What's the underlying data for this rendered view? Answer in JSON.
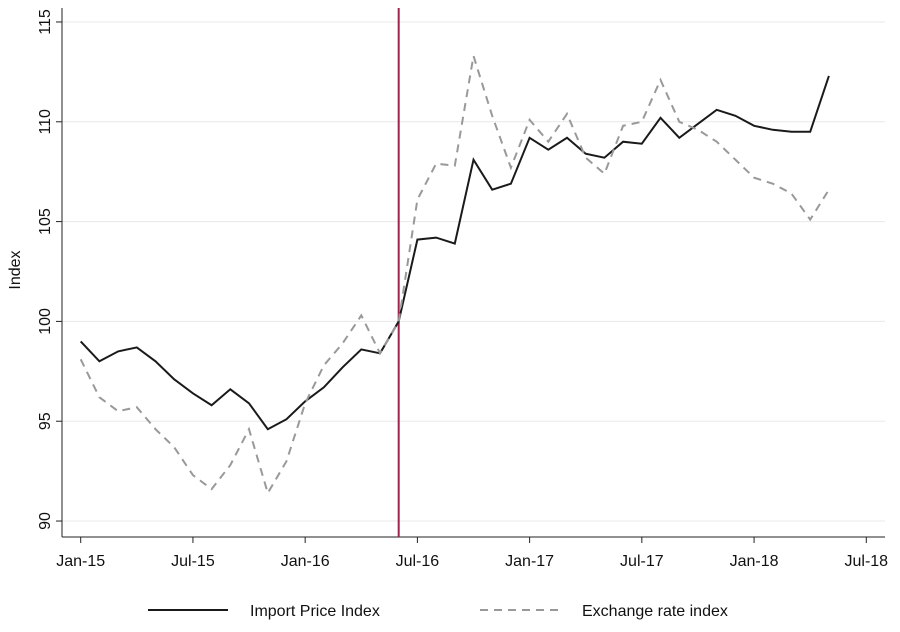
{
  "chart_data": {
    "type": "line",
    "y_label": "Index",
    "x": [
      "2015-01",
      "2015-02",
      "2015-03",
      "2015-04",
      "2015-05",
      "2015-06",
      "2015-07",
      "2015-08",
      "2015-09",
      "2015-10",
      "2015-11",
      "2015-12",
      "2016-01",
      "2016-02",
      "2016-03",
      "2016-04",
      "2016-05",
      "2016-06",
      "2016-07",
      "2016-08",
      "2016-09",
      "2016-10",
      "2016-11",
      "2016-12",
      "2017-01",
      "2017-02",
      "2017-03",
      "2017-04",
      "2017-05",
      "2017-06",
      "2017-07",
      "2017-08",
      "2017-09",
      "2017-10",
      "2017-11",
      "2017-12",
      "2018-01",
      "2018-02",
      "2018-03",
      "2018-04",
      "2018-05"
    ],
    "series": [
      {
        "name": "Import Price Index",
        "color": "#1a1a1a",
        "dash": "none",
        "values": [
          99.0,
          98.0,
          98.5,
          98.7,
          98.0,
          97.1,
          96.4,
          95.8,
          96.6,
          95.9,
          94.6,
          95.1,
          96.0,
          96.7,
          97.7,
          98.6,
          98.4,
          100,
          104.1,
          104.2,
          103.9,
          108.1,
          106.6,
          106.9,
          109.2,
          108.6,
          109.2,
          108.4,
          108.2,
          109.0,
          108.9,
          110.2,
          109.2,
          109.9,
          110.6,
          110.3,
          109.8,
          109.6,
          109.5,
          109.5,
          112.3
        ]
      },
      {
        "name": "Exchange rate index",
        "color": "#999999",
        "dash": "8 6",
        "values": [
          98.1,
          96.2,
          95.5,
          95.7,
          94.6,
          93.7,
          92.3,
          91.6,
          92.8,
          94.6,
          91.4,
          93.0,
          95.9,
          97.8,
          98.9,
          100.3,
          98.4,
          100,
          106.1,
          107.9,
          107.8,
          113.3,
          110.3,
          107.7,
          110.1,
          109.0,
          110.4,
          108.2,
          107.4,
          109.8,
          110.0,
          112.1,
          110.0,
          109.6,
          109.0,
          108.1,
          107.2,
          106.9,
          106.4,
          105.1,
          106.6
        ]
      }
    ],
    "xlim": [
      "2014-12",
      "2018-08"
    ],
    "xticks": [
      {
        "value": "2015-01",
        "label": "Jan-15"
      },
      {
        "value": "2015-07",
        "label": "Jul-15"
      },
      {
        "value": "2016-01",
        "label": "Jan-16"
      },
      {
        "value": "2016-07",
        "label": "Jul-16"
      },
      {
        "value": "2017-01",
        "label": "Jan-17"
      },
      {
        "value": "2017-07",
        "label": "Jul-17"
      },
      {
        "value": "2018-01",
        "label": "Jan-18"
      },
      {
        "value": "2018-07",
        "label": "Jul-18"
      }
    ],
    "ylim": [
      89.2,
      115.7
    ],
    "yticks": [
      90,
      95,
      100,
      105,
      110,
      115
    ],
    "grid": true,
    "vline": {
      "x": "2016-06",
      "color": "#a0234b"
    },
    "legend": "bottom"
  }
}
